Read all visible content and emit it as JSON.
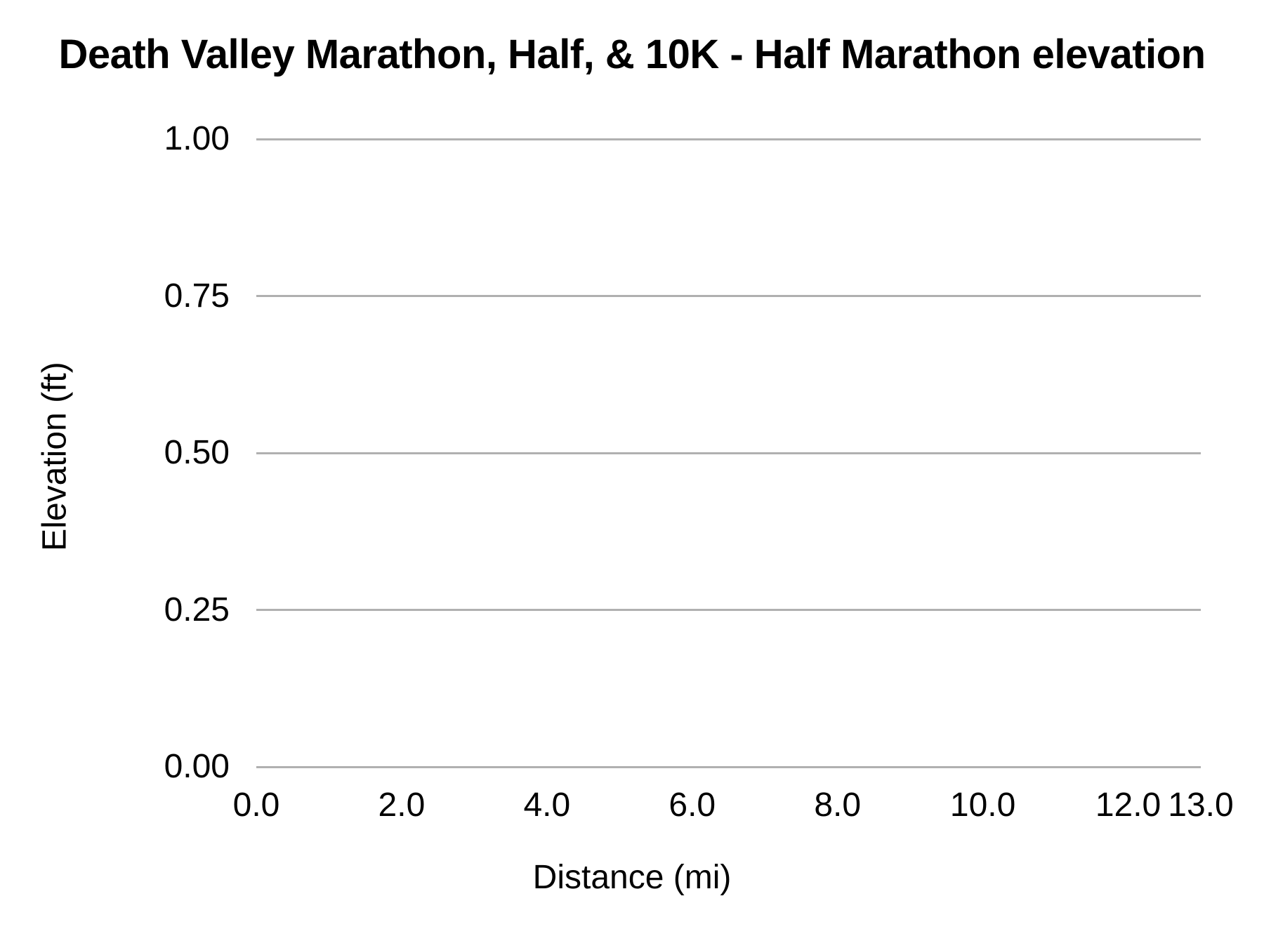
{
  "title": "Death Valley Marathon, Half, & 10K - Half Marathon elevation",
  "colors": {
    "background": "#ffffff",
    "gridline": "#b0b0b0",
    "text": "#000000"
  },
  "chart_data": {
    "type": "line",
    "title": "Death Valley Marathon, Half, & 10K - Half Marathon elevation",
    "xlabel": "Distance (mi)",
    "ylabel": "Elevation (ft)",
    "xlim": [
      0,
      13
    ],
    "ylim": [
      0,
      1
    ],
    "x_tick_labels": [
      "0.0",
      "2.0",
      "4.0",
      "6.0",
      "8.0",
      "10.0",
      "12.0",
      "13.0"
    ],
    "x_tick_values": [
      0,
      2,
      4,
      6,
      8,
      10,
      12,
      13
    ],
    "y_tick_labels": [
      "0.00",
      "0.25",
      "0.50",
      "0.75",
      "1.00"
    ],
    "y_tick_values": [
      0,
      0.25,
      0.5,
      0.75,
      1
    ],
    "grid": "horizontal-only",
    "legend": "none",
    "series": [],
    "note_visible_data_points": "none - plot area is empty, no line is drawn"
  }
}
